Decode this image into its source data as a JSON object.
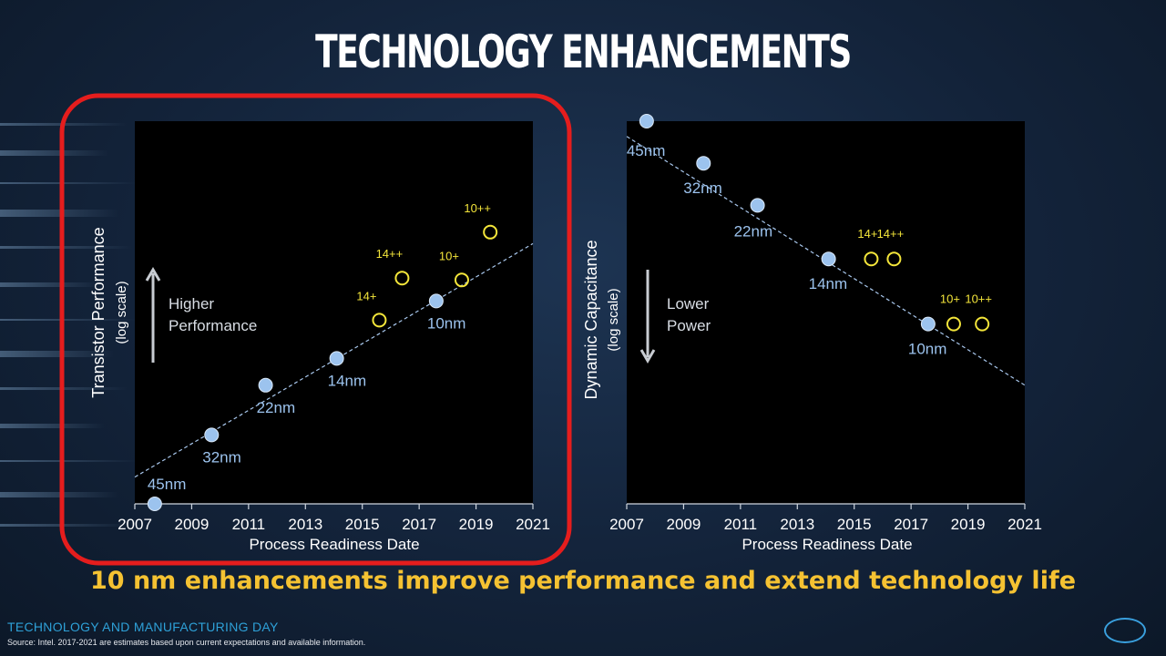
{
  "slide": {
    "title": "TECHNOLOGY ENHANCEMENTS",
    "tagline": "10 nm enhancements improve performance and extend technology life",
    "footer_event": "TECHNOLOGY AND MANUFACTURING DAY",
    "footer_source": "Source: Intel. 2017-2021 are estimates based upon current expectations and available information.",
    "logo_text": "intel"
  },
  "colors": {
    "node_dot": "#9cc3ee",
    "enhancement_ring": "#f3e53a",
    "highlight_box": "#e51d1d",
    "tagline": "#f5c232",
    "footer_event": "#2ea1d8"
  },
  "chart_data": [
    {
      "type": "scatter",
      "xlabel": "Process Readiness Date",
      "ylabel": "Transistor Performance",
      "ylabel_sub": "(log scale)",
      "xlim": [
        2007,
        2021
      ],
      "x_ticks": [
        2007,
        2009,
        2011,
        2013,
        2015,
        2017,
        2019,
        2021
      ],
      "ylim": [
        0,
        100
      ],
      "direction_text": [
        "Higher",
        "Performance"
      ],
      "direction": "up",
      "highlighted": true,
      "trendline": [
        [
          2007,
          7
        ],
        [
          2021,
          68
        ]
      ],
      "nodes": [
        {
          "label": "45nm",
          "x": 2007.7,
          "y": 0
        },
        {
          "label": "32nm",
          "x": 2009.7,
          "y": 18
        },
        {
          "label": "22nm",
          "x": 2011.6,
          "y": 31
        },
        {
          "label": "14nm",
          "x": 2014.1,
          "y": 38
        },
        {
          "label": "10nm",
          "x": 2017.6,
          "y": 53
        }
      ],
      "enhancements": [
        {
          "label": "14+",
          "x": 2015.6,
          "y": 48
        },
        {
          "label": "14++",
          "x": 2016.4,
          "y": 59
        },
        {
          "label": "10+",
          "x": 2018.5,
          "y": 58.5
        },
        {
          "label": "10++",
          "x": 2019.5,
          "y": 71
        }
      ]
    },
    {
      "type": "scatter",
      "xlabel": "Process Readiness Date",
      "ylabel": "Dynamic Capacitance",
      "ylabel_sub": "(log scale)",
      "xlim": [
        2007,
        2021
      ],
      "x_ticks": [
        2007,
        2009,
        2011,
        2013,
        2015,
        2017,
        2019,
        2021
      ],
      "ylim": [
        0,
        100
      ],
      "direction_text": [
        "Lower",
        "Power"
      ],
      "direction": "down",
      "highlighted": false,
      "trendline": [
        [
          2007,
          96
        ],
        [
          2021,
          31
        ]
      ],
      "nodes": [
        {
          "label": "45nm",
          "x": 2007.7,
          "y": 100
        },
        {
          "label": "32nm",
          "x": 2009.7,
          "y": 89
        },
        {
          "label": "22nm",
          "x": 2011.6,
          "y": 78
        },
        {
          "label": "14nm",
          "x": 2014.1,
          "y": 64
        },
        {
          "label": "10nm",
          "x": 2017.6,
          "y": 47
        }
      ],
      "enhancements": [
        {
          "label": "14+",
          "x": 2015.6,
          "y": 64
        },
        {
          "label": "14++",
          "x": 2016.4,
          "y": 64
        },
        {
          "label": "10+",
          "x": 2018.5,
          "y": 47
        },
        {
          "label": "10++",
          "x": 2019.5,
          "y": 47
        }
      ]
    }
  ]
}
